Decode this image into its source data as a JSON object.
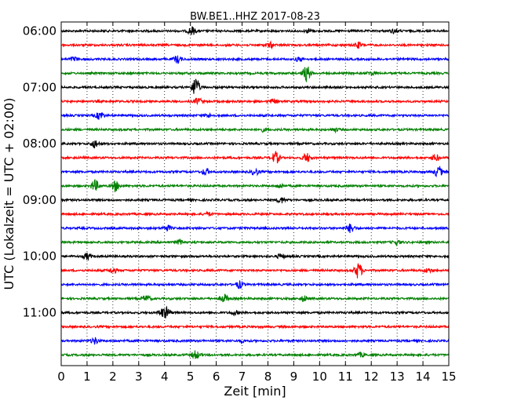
{
  "chart_data": {
    "type": "line",
    "title": "BW.BE1..HHZ 2017-08-23",
    "xlabel": "Zeit  [min]",
    "ylabel": "UTC (Lokalzeit = UTC + 02:00)",
    "xlim": [
      0,
      15
    ],
    "x_ticks": [
      "0",
      "1",
      "2",
      "3",
      "4",
      "5",
      "6",
      "7",
      "8",
      "9",
      "10",
      "11",
      "12",
      "13",
      "14",
      "15"
    ],
    "y_tick_labels": [
      "06:00",
      "07:00",
      "08:00",
      "09:00",
      "10:00",
      "11:00"
    ],
    "grid": true,
    "trace_colors": [
      "#000000",
      "#ff0000",
      "#0000ff",
      "#008000"
    ],
    "series": [
      {
        "start": "06:00",
        "events": [
          [
            5.05,
            1.0
          ],
          [
            9.6,
            0.5
          ],
          [
            12.9,
            0.5
          ]
        ]
      },
      {
        "start": "06:15",
        "events": [
          [
            8.1,
            0.6
          ],
          [
            11.5,
            0.7
          ]
        ]
      },
      {
        "start": "06:30",
        "events": [
          [
            0.5,
            0.5
          ],
          [
            4.5,
            0.9
          ],
          [
            9.2,
            0.5
          ]
        ]
      },
      {
        "start": "06:45",
        "events": [
          [
            9.5,
            2.0
          ],
          [
            12.0,
            0.5
          ]
        ]
      },
      {
        "start": "07:00",
        "events": [
          [
            5.2,
            2.5
          ]
        ]
      },
      {
        "start": "07:15",
        "events": [
          [
            5.3,
            0.8
          ],
          [
            8.2,
            0.5
          ]
        ]
      },
      {
        "start": "07:30",
        "events": [
          [
            1.5,
            1.0
          ],
          [
            5.7,
            0.4
          ]
        ]
      },
      {
        "start": "07:45",
        "events": [
          [
            7.8,
            0.4
          ],
          [
            10.6,
            0.4
          ]
        ]
      },
      {
        "start": "08:00",
        "events": [
          [
            1.3,
            1.0
          ]
        ]
      },
      {
        "start": "08:15",
        "events": [
          [
            8.3,
            1.5
          ],
          [
            9.5,
            1.1
          ],
          [
            14.5,
            0.8
          ]
        ]
      },
      {
        "start": "08:30",
        "events": [
          [
            5.6,
            0.8
          ],
          [
            7.5,
            0.8
          ],
          [
            14.6,
            1.4
          ]
        ]
      },
      {
        "start": "08:45",
        "events": [
          [
            1.3,
            1.4
          ],
          [
            2.1,
            1.3
          ],
          [
            8.5,
            0.5
          ]
        ]
      },
      {
        "start": "09:00",
        "events": [
          [
            8.5,
            0.7
          ]
        ]
      },
      {
        "start": "09:15",
        "events": [
          [
            5.7,
            0.4
          ]
        ]
      },
      {
        "start": "09:30",
        "events": [
          [
            4.1,
            0.7
          ],
          [
            11.2,
            1.1
          ]
        ]
      },
      {
        "start": "09:45",
        "events": [
          [
            4.6,
            0.6
          ],
          [
            13.0,
            0.5
          ]
        ]
      },
      {
        "start": "10:00",
        "events": [
          [
            1.0,
            0.8
          ],
          [
            8.5,
            0.6
          ]
        ]
      },
      {
        "start": "10:15",
        "events": [
          [
            2.0,
            0.7
          ],
          [
            11.5,
            2.0
          ],
          [
            14.2,
            0.5
          ]
        ]
      },
      {
        "start": "10:30",
        "events": [
          [
            6.9,
            0.9
          ]
        ]
      },
      {
        "start": "10:45",
        "events": [
          [
            3.3,
            0.8
          ],
          [
            6.3,
            1.0
          ],
          [
            9.4,
            0.7
          ]
        ]
      },
      {
        "start": "11:00",
        "events": [
          [
            3.9,
            0.9
          ],
          [
            4.1,
            1.1
          ],
          [
            6.7,
            0.5
          ]
        ]
      },
      {
        "start": "11:15",
        "events": []
      },
      {
        "start": "11:30",
        "events": [
          [
            1.3,
            0.8
          ],
          [
            7.0,
            0.3
          ]
        ]
      },
      {
        "start": "11:45",
        "events": [
          [
            5.2,
            1.0
          ],
          [
            11.6,
            0.5
          ]
        ]
      }
    ]
  }
}
